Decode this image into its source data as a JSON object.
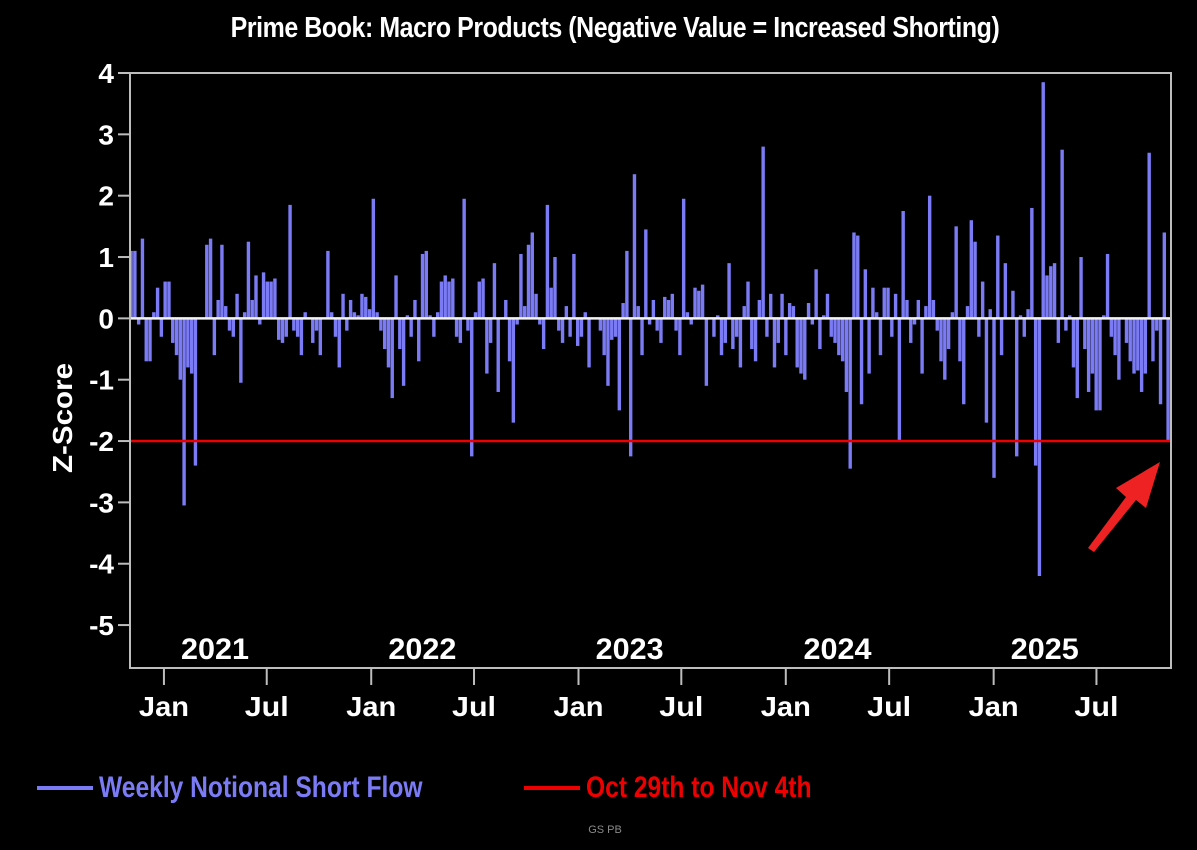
{
  "chart_data": {
    "type": "bar",
    "title": "Prime Book: Macro Products (Negative Value = Increased Shorting)",
    "xlabel": "",
    "ylabel": "Z-Score",
    "ylim": [
      -5.7,
      4
    ],
    "yticks": [
      4,
      3,
      2,
      1,
      0,
      -1,
      -2,
      -3,
      -4,
      -5
    ],
    "x_start": "2020-11-04",
    "x_end": "2025-11-04",
    "frequency": "weekly",
    "x_month_ticks": [
      {
        "date": "2021-01-01",
        "label": "Jan"
      },
      {
        "date": "2021-07-01",
        "label": "Jul"
      },
      {
        "date": "2022-01-01",
        "label": "Jan"
      },
      {
        "date": "2022-07-01",
        "label": "Jul"
      },
      {
        "date": "2023-01-01",
        "label": "Jan"
      },
      {
        "date": "2023-07-01",
        "label": "Jul"
      },
      {
        "date": "2024-01-01",
        "label": "Jan"
      },
      {
        "date": "2024-07-01",
        "label": "Jul"
      },
      {
        "date": "2025-01-01",
        "label": "Jan"
      },
      {
        "date": "2025-07-01",
        "label": "Jul"
      }
    ],
    "x_year_labels": [
      {
        "date": "2021-04-01",
        "label": "2021"
      },
      {
        "date": "2022-04-01",
        "label": "2022"
      },
      {
        "date": "2023-04-01",
        "label": "2023"
      },
      {
        "date": "2024-04-01",
        "label": "2024"
      },
      {
        "date": "2025-04-01",
        "label": "2025"
      }
    ],
    "grid": false,
    "legend_position": "bottom",
    "series": [
      {
        "name": "Weekly Notional Short Flow",
        "color": "#7b7bf5",
        "values": [
          1.1,
          1.1,
          -0.1,
          1.3,
          -0.7,
          -0.7,
          0.1,
          0.5,
          -0.3,
          0.6,
          0.6,
          -0.4,
          -0.6,
          -1.0,
          -3.05,
          -0.8,
          -0.9,
          -2.4,
          0.0,
          0.0,
          1.2,
          1.3,
          -0.6,
          0.3,
          1.2,
          0.2,
          -0.2,
          -0.3,
          0.4,
          -1.05,
          0.1,
          1.25,
          0.3,
          0.7,
          -0.1,
          0.75,
          0.6,
          0.6,
          0.65,
          -0.35,
          -0.4,
          -0.3,
          1.85,
          -0.2,
          -0.3,
          -0.6,
          0.1,
          0.0,
          -0.4,
          -0.2,
          -0.6,
          0.0,
          1.1,
          0.1,
          -0.3,
          -0.8,
          0.4,
          -0.2,
          0.3,
          0.1,
          0.05,
          0.4,
          0.35,
          0.15,
          1.95,
          0.1,
          -0.2,
          -0.5,
          -0.8,
          -1.3,
          0.7,
          -0.5,
          -1.1,
          0.05,
          -0.3,
          0.3,
          -0.7,
          1.05,
          1.1,
          0.05,
          -0.3,
          0.1,
          0.6,
          0.7,
          0.6,
          0.65,
          -0.3,
          -0.4,
          1.95,
          -0.2,
          -2.25,
          0.1,
          0.6,
          0.65,
          -0.9,
          -0.4,
          0.9,
          -1.2,
          0.0,
          0.3,
          -0.7,
          -1.7,
          -0.1,
          1.05,
          0.2,
          1.2,
          1.4,
          0.4,
          -0.1,
          -0.5,
          1.85,
          0.5,
          1.0,
          -0.2,
          -0.4,
          0.2,
          -0.3,
          1.05,
          -0.45,
          -0.3,
          0.1,
          -0.8,
          0.0,
          0.0,
          -0.2,
          -0.6,
          -1.1,
          -0.35,
          -0.3,
          -1.5,
          0.25,
          1.1,
          -2.25,
          2.35,
          0.2,
          -0.6,
          1.45,
          -0.1,
          0.3,
          -0.2,
          -0.4,
          0.35,
          0.3,
          0.4,
          -0.2,
          -0.6,
          1.95,
          0.1,
          -0.1,
          0.5,
          0.45,
          0.55,
          -1.1,
          0.0,
          -0.3,
          0.05,
          -0.6,
          -0.4,
          0.9,
          -0.5,
          -0.3,
          -0.8,
          0.2,
          0.6,
          -0.5,
          -0.7,
          0.3,
          2.8,
          -0.3,
          0.4,
          -0.8,
          -0.4,
          0.4,
          -0.6,
          0.25,
          0.2,
          -0.8,
          -0.9,
          -1.0,
          0.25,
          -0.1,
          0.8,
          -0.5,
          0.05,
          0.4,
          -0.3,
          -0.4,
          -0.6,
          -0.7,
          -1.2,
          -2.45,
          1.4,
          1.35,
          -1.4,
          0.8,
          -0.9,
          0.5,
          0.1,
          -0.6,
          0.5,
          0.5,
          -0.3,
          0.4,
          -2.0,
          1.75,
          0.3,
          -0.4,
          -0.1,
          0.3,
          -0.9,
          0.2,
          2.0,
          0.3,
          -0.2,
          -0.7,
          -1.0,
          -0.5,
          0.1,
          1.5,
          -0.7,
          -1.4,
          0.2,
          1.6,
          1.25,
          -0.3,
          0.6,
          -1.7,
          0.15,
          -2.6,
          1.35,
          -0.6,
          0.9,
          0.0,
          0.45,
          -2.25,
          0.05,
          -0.3,
          0.15,
          1.8,
          -2.4,
          -4.2,
          3.85,
          0.7,
          0.85,
          0.9,
          -0.4,
          2.75,
          -0.2,
          0.05,
          -0.8,
          -1.3,
          1.0,
          -0.5,
          -1.2,
          -0.9,
          -1.5,
          -1.5,
          0.05,
          1.05,
          -0.3,
          -0.6,
          -1.0,
          0.0,
          -0.4,
          -0.7,
          -0.9,
          -0.85,
          -1.2,
          -0.9,
          2.7,
          -0.7,
          -0.2,
          -1.4,
          1.4,
          -2.0
        ]
      },
      {
        "name": "Oct 29th to Nov 4th",
        "color": "#ee0000",
        "type": "hline",
        "value": -2
      }
    ],
    "annotations": [
      {
        "type": "arrow",
        "color": "#ee2222",
        "points_to": "last bar (Oct 29th to Nov 4th, 2025)",
        "value": -2.0
      }
    ]
  },
  "legend": {
    "items": [
      {
        "label": "Weekly Notional Short Flow",
        "color": "#7b7bf5"
      },
      {
        "label": "Oct 29th to Nov 4th",
        "color": "#ee0000"
      }
    ]
  },
  "source": "GS PB"
}
